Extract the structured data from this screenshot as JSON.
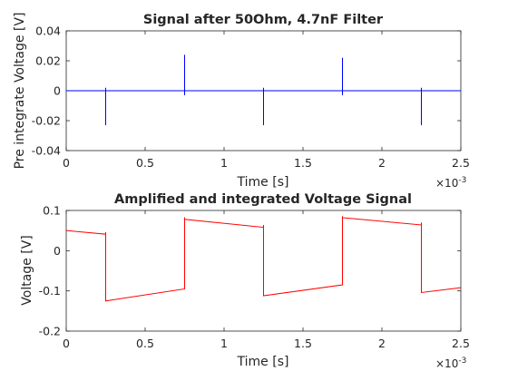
{
  "chart_data": [
    {
      "type": "line",
      "title": "Signal after 50Ohm, 4.7nF Filter",
      "xlabel": "Time [s]",
      "ylabel": "Pre integrate Voltage [V]",
      "xlim": [
        0,
        0.0025
      ],
      "ylim": [
        -0.04,
        0.04
      ],
      "x_exponent_label": "×10",
      "x_exponent": "-3",
      "x_ticks": [
        0,
        0.0005,
        0.001,
        0.0015,
        0.002,
        0.0025
      ],
      "x_tick_labels": [
        "0",
        "0.5",
        "1",
        "1.5",
        "2",
        "2.5"
      ],
      "y_ticks": [
        -0.04,
        -0.02,
        0,
        0.02,
        0.04
      ],
      "y_tick_labels": [
        "-0.04",
        "-0.02",
        "0",
        "0.02",
        "0.04"
      ],
      "grid": false,
      "series": [
        {
          "color": "#0000ff",
          "x": [
            0,
            0.00025,
            0.00025,
            0.00025,
            0.00025,
            0.00075,
            0.00075,
            0.00075,
            0.00075,
            0.00125,
            0.00125,
            0.00125,
            0.00125,
            0.00175,
            0.00175,
            0.00175,
            0.00175,
            0.00225,
            0.00225,
            0.00225,
            0.00225,
            0.0025
          ],
          "y": [
            0,
            0,
            -0.023,
            0.002,
            0,
            0,
            0.024,
            -0.003,
            0,
            0,
            -0.023,
            0.002,
            0,
            0,
            0.022,
            -0.003,
            0,
            0,
            -0.023,
            0.002,
            0,
            0
          ]
        }
      ]
    },
    {
      "type": "line",
      "title": "Amplified and integrated Voltage Signal",
      "xlabel": "Time [s]",
      "ylabel": "Voltage [V]",
      "xlim": [
        0,
        0.0025
      ],
      "ylim": [
        -0.2,
        0.1
      ],
      "x_exponent_label": "×10",
      "x_exponent": "-3",
      "x_ticks": [
        0,
        0.0005,
        0.001,
        0.0015,
        0.002,
        0.0025
      ],
      "x_tick_labels": [
        "0",
        "0.5",
        "1",
        "1.5",
        "2",
        "2.5"
      ],
      "y_ticks": [
        -0.2,
        -0.1,
        0,
        0.1
      ],
      "y_tick_labels": [
        "-0.2",
        "-0.1",
        "0",
        "0.1"
      ],
      "grid": false,
      "series": [
        {
          "color": "#ff0000",
          "x": [
            0,
            0.00025,
            0.00025,
            0.00025,
            0.00025,
            0.00075,
            0.00075,
            0.00075,
            0.00075,
            0.00125,
            0.00125,
            0.00125,
            0.00125,
            0.00175,
            0.00175,
            0.00175,
            0.00175,
            0.00225,
            0.00225,
            0.00225,
            0.00225,
            0.0025
          ],
          "y": [
            0.05,
            0.041,
            0.046,
            -0.118,
            -0.125,
            -0.095,
            -0.09,
            0.083,
            0.078,
            0.058,
            0.064,
            -0.108,
            -0.112,
            -0.085,
            -0.08,
            0.086,
            0.082,
            0.064,
            0.07,
            -0.1,
            -0.104,
            -0.092
          ]
        }
      ]
    }
  ]
}
